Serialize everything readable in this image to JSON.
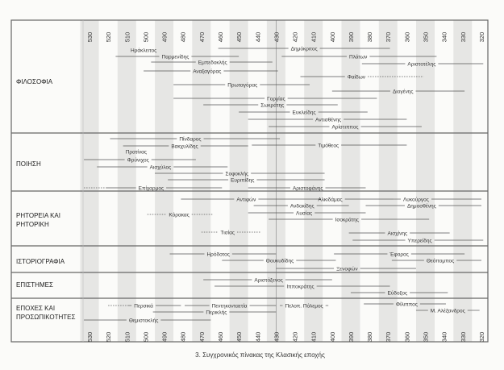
{
  "caption": "3. Συγχρονικός πίνακας της Κλασικής εποχής",
  "chart_data": {
    "type": "timeline",
    "x_axis": {
      "ticks": [
        530,
        520,
        510,
        500,
        490,
        480,
        470,
        460,
        450,
        440,
        430,
        420,
        410,
        400,
        390,
        380,
        370,
        360,
        350,
        340,
        330,
        320
      ],
      "range": [
        530,
        320
      ],
      "direction": "descending",
      "position": "top-and-bottom"
    },
    "colors": {
      "stripe": "#e6e6e4",
      "line": "#555555",
      "border": "#666666"
    },
    "sections": [
      {
        "label": "ΦΙΛΟΣΟΦΙΑ",
        "entries": [
          {
            "name": "Ηράκλειτος",
            "label_at": 501
          },
          {
            "name": "Δημόκριτος",
            "start": 461,
            "end": 369,
            "label_at": 415
          },
          {
            "name": "Παρμενίδης",
            "start": 516,
            "end": 450,
            "label_at": 484
          },
          {
            "name": "Πλάτων",
            "start": 427,
            "end": 344,
            "label_at": 386
          },
          {
            "name": "Εμπεδοκλής",
            "start": 497,
            "end": 432,
            "label_at": 464
          },
          {
            "name": "Αριστοτέλης",
            "start": 384,
            "end": 319,
            "label_at": 352
          },
          {
            "name": "Αναξαγόρας",
            "start": 501,
            "end": 429,
            "label_at": 467
          },
          {
            "name": "Φαίδων",
            "start": 417,
            "end": 351,
            "label_at": 387,
            "uncertain_after_label": true
          },
          {
            "name": "Πρωταγόρας",
            "start": 485,
            "end": 412,
            "label_at": 448
          },
          {
            "name": "Διογένης",
            "start": 400,
            "end": 329,
            "label_at": 362
          },
          {
            "name": "Γοργίας",
            "start": 485,
            "end": 376,
            "label_at": 430
          },
          {
            "name": "Σωκράτης",
            "start": 469,
            "end": 397,
            "label_at": 432
          },
          {
            "name": "Ευκλείδης",
            "start": 450,
            "end": 381,
            "label_at": 415
          },
          {
            "name": "Αντισθένης",
            "start": 445,
            "end": 360,
            "label_at": 402
          },
          {
            "name": "Αρίστιππος",
            "start": 434,
            "end": 352,
            "label_at": 393
          }
        ]
      },
      {
        "label": "ΠΟΙΗΣΗ",
        "entries": [
          {
            "name": "Πίνδαρος",
            "start": 519,
            "end": 428,
            "label_at": 476
          },
          {
            "name": "Βακχυλίδης",
            "start": 512,
            "end": 445,
            "label_at": 479
          },
          {
            "name": "Τιμόθεος",
            "start": 443,
            "end": 360,
            "label_at": 402
          },
          {
            "name": "Πρατίνας",
            "label_at": 505
          },
          {
            "name": "Φρύνιχος",
            "start": 533,
            "end": 473,
            "label_at": 504
          },
          {
            "name": "Αισχύλος",
            "start": 526,
            "end": 456,
            "label_at": 492
          },
          {
            "name": "Σοφοκλής",
            "start": 495,
            "end": 404,
            "label_at": 451
          },
          {
            "name": "Ευριπίδης",
            "start": 488,
            "end": 404,
            "label_at": 448
          },
          {
            "name": "Επίχαρμος",
            "start": 533,
            "end": 459,
            "label_at": 497,
            "uncertain_until": 521
          },
          {
            "name": "Αριστοφάνης",
            "start": 445,
            "end": 382,
            "label_at": 413
          }
        ]
      },
      {
        "label": "ΡΗΤΟΡΕΙΑ ΚΑΙ ΡΗΤΟΡΙΚΗ",
        "entries": [
          {
            "name": "Αντιφών",
            "start": 481,
            "end": 406,
            "label_at": 446
          },
          {
            "name": "Αλκιδάμας",
            "start": 406,
            "end": 367,
            "label_at": 401
          },
          {
            "name": "Λυκούργος",
            "start": 367,
            "end": 320,
            "label_at": 355
          },
          {
            "name": "Ανδοκίδης",
            "start": 442,
            "end": 391,
            "label_at": 416
          },
          {
            "name": "Δημοσθένης",
            "start": 382,
            "end": 320,
            "label_at": 352
          },
          {
            "name": "Κόρακας",
            "start": 499,
            "end": 464,
            "label_at": 482,
            "uncertain": true
          },
          {
            "name": "Λυσίας",
            "start": 445,
            "end": 382,
            "label_at": 415
          },
          {
            "name": "Ισοκράτης",
            "start": 434,
            "end": 348,
            "label_at": 392
          },
          {
            "name": "Τισίας",
            "start": 470,
            "end": 438,
            "label_at": 456,
            "uncertain": true
          },
          {
            "name": "Αισχίνης",
            "start": 391,
            "end": 337,
            "label_at": 365
          },
          {
            "name": "Υπερείδης",
            "start": 389,
            "end": 319,
            "label_at": 353
          }
        ]
      },
      {
        "label": "ΙΣΤΟΡΙΟΓΡΑΦΙΑ",
        "entries": [
          {
            "name": "Ηρόδοτος",
            "start": 487,
            "end": 430,
            "label_at": 461
          },
          {
            "name": "Έφορος",
            "start": 399,
            "end": 329,
            "label_at": 364
          },
          {
            "name": "Θουκυδίδης",
            "start": 459,
            "end": 398,
            "label_at": 428
          },
          {
            "name": "Θεόπομπος",
            "start": 368,
            "end": 320,
            "label_at": 342
          },
          {
            "name": "Ξενοφών",
            "start": 430,
            "end": 355,
            "label_at": 392
          }
        ]
      },
      {
        "label": "ΕΠΙΣΤΗΜΕΣ",
        "entries": [
          {
            "name": "Αριστόξενος",
            "start": 469,
            "end": 400,
            "label_at": 434
          },
          {
            "name": "Ιπποκράτης",
            "start": 463,
            "end": 369,
            "label_at": 417
          },
          {
            "name": "Εύδοξος",
            "start": 390,
            "end": 338,
            "label_at": 365
          }
        ]
      },
      {
        "label": "ΕΠΟΧΕΣ ΚΑΙ ΠΡΟΣΩΠΙΚΟΤΗΤΕΣ",
        "entries": [
          {
            "name": "Περσικά",
            "start": 520,
            "end": 481,
            "label_at": 501,
            "uncertain_until": 509
          },
          {
            "name": "Πεντηκονταετία",
            "start": 479,
            "end": 430,
            "label_at": 455
          },
          {
            "name": "Πελοπ. Πόλεμος",
            "start": 428,
            "end": 402,
            "label_at": 415
          },
          {
            "name": "Φίλιππος",
            "start": 383,
            "end": 339,
            "label_at": 360
          },
          {
            "name": "Περικλής",
            "start": 496,
            "end": 430,
            "label_at": 462
          },
          {
            "name": "Μ. Αλέξανδρος",
            "start": 355,
            "end": 321,
            "label_at": 338
          },
          {
            "name": "Θεμιστοκλής",
            "start": 533,
            "end": 465,
            "label_at": 501
          }
        ]
      }
    ]
  }
}
